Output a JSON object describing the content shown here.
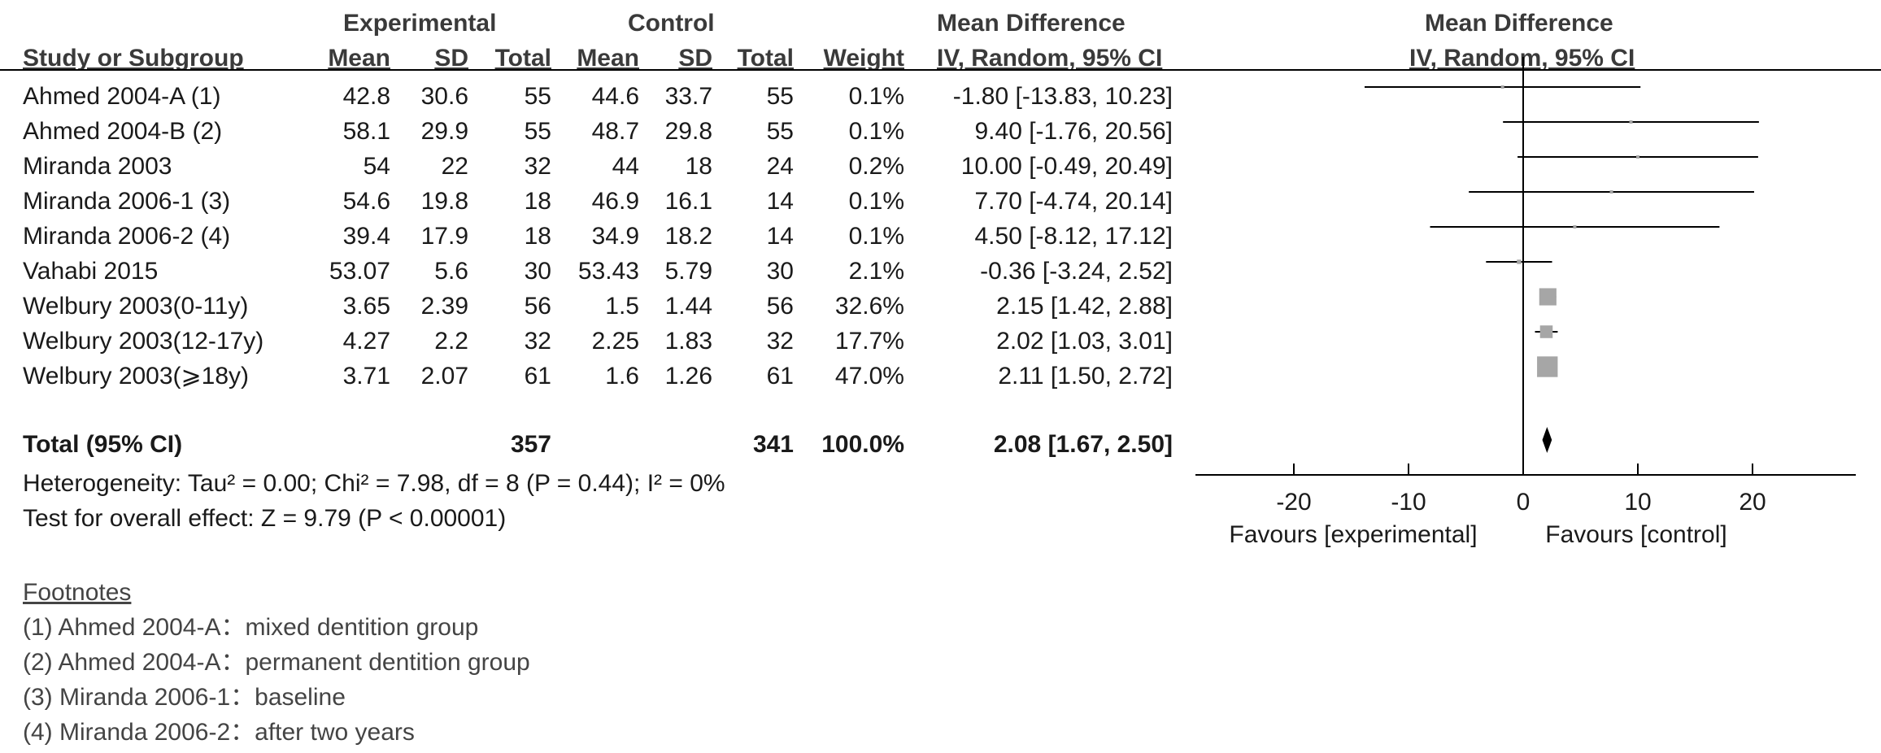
{
  "header": {
    "group_experimental": "Experimental",
    "group_control": "Control",
    "mean_difference": "Mean Difference",
    "study_or_subgroup": "Study or Subgroup",
    "mean": "Mean",
    "sd": "SD",
    "total": "Total",
    "weight": "Weight",
    "method": "IV, Random, 95% CI",
    "plot_title": "Mean Difference",
    "plot_method": "IV, Random, 95% CI"
  },
  "studies": [
    {
      "name": "Ahmed 2004-A (1)",
      "e_mean": "42.8",
      "e_sd": "30.6",
      "e_total": "55",
      "c_mean": "44.6",
      "c_sd": "33.7",
      "c_total": "55",
      "weight": "0.1%",
      "ci": "-1.80 [-13.83, 10.23]"
    },
    {
      "name": "Ahmed 2004-B (2)",
      "e_mean": "58.1",
      "e_sd": "29.9",
      "e_total": "55",
      "c_mean": "48.7",
      "c_sd": "29.8",
      "c_total": "55",
      "weight": "0.1%",
      "ci": "9.40 [-1.76, 20.56]"
    },
    {
      "name": "Miranda 2003",
      "e_mean": "54",
      "e_sd": "22",
      "e_total": "32",
      "c_mean": "44",
      "c_sd": "18",
      "c_total": "24",
      "weight": "0.2%",
      "ci": "10.00 [-0.49, 20.49]"
    },
    {
      "name": "Miranda 2006-1 (3)",
      "e_mean": "54.6",
      "e_sd": "19.8",
      "e_total": "18",
      "c_mean": "46.9",
      "c_sd": "16.1",
      "c_total": "14",
      "weight": "0.1%",
      "ci": "7.70 [-4.74, 20.14]"
    },
    {
      "name": "Miranda 2006-2 (4)",
      "e_mean": "39.4",
      "e_sd": "17.9",
      "e_total": "18",
      "c_mean": "34.9",
      "c_sd": "18.2",
      "c_total": "14",
      "weight": "0.1%",
      "ci": "4.50 [-8.12, 17.12]"
    },
    {
      "name": "Vahabi 2015",
      "e_mean": "53.07",
      "e_sd": "5.6",
      "e_total": "30",
      "c_mean": "53.43",
      "c_sd": "5.79",
      "c_total": "30",
      "weight": "2.1%",
      "ci": "-0.36 [-3.24, 2.52]"
    },
    {
      "name": "Welbury 2003(0-11y)",
      "e_mean": "3.65",
      "e_sd": "2.39",
      "e_total": "56",
      "c_mean": "1.5",
      "c_sd": "1.44",
      "c_total": "56",
      "weight": "32.6%",
      "ci": "2.15 [1.42, 2.88]"
    },
    {
      "name": "Welbury 2003(12-17y)",
      "e_mean": "4.27",
      "e_sd": "2.2",
      "e_total": "32",
      "c_mean": "2.25",
      "c_sd": "1.83",
      "c_total": "32",
      "weight": "17.7%",
      "ci": "2.02 [1.03, 3.01]"
    },
    {
      "name": "Welbury 2003(⩾18y)",
      "e_mean": "3.71",
      "e_sd": "2.07",
      "e_total": "61",
      "c_mean": "1.6",
      "c_sd": "1.26",
      "c_total": "61",
      "weight": "47.0%",
      "ci": "2.11 [1.50, 2.72]"
    }
  ],
  "total": {
    "label": "Total (95% CI)",
    "e_total": "357",
    "c_total": "341",
    "weight": "100.0%",
    "ci": "2.08 [1.67, 2.50]"
  },
  "heterogeneity": "Heterogeneity: Tau² = 0.00; Chi² = 7.98, df = 8 (P = 0.44); I² = 0%",
  "overall_effect": "Test for overall effect: Z = 9.79 (P < 0.00001)",
  "footnotes": {
    "title": "Footnotes",
    "items": [
      "(1) Ahmed 2004-A：mixed dentition group",
      "(2) Ahmed 2004-A：permanent dentition group",
      "(3) Miranda 2006-1：baseline",
      "(4) Miranda 2006-2：after two years"
    ]
  },
  "chart_data": {
    "type": "forest",
    "xlim": [
      -28,
      29
    ],
    "xticks": [
      -20,
      -10,
      0,
      10,
      20
    ],
    "tick_labels": [
      "-20",
      "-10",
      "0",
      "10",
      "20"
    ],
    "xlabel_left": "Favours [experimental]",
    "xlabel_right": "Favours [control]",
    "point_color": "#a6a6a6",
    "studies": [
      {
        "name": "Ahmed 2004-A (1)",
        "estimate": -1.8,
        "lower": -13.83,
        "upper": 10.23,
        "weight": 0.1
      },
      {
        "name": "Ahmed 2004-B (2)",
        "estimate": 9.4,
        "lower": -1.76,
        "upper": 20.56,
        "weight": 0.1
      },
      {
        "name": "Miranda 2003",
        "estimate": 10.0,
        "lower": -0.49,
        "upper": 20.49,
        "weight": 0.2
      },
      {
        "name": "Miranda 2006-1 (3)",
        "estimate": 7.7,
        "lower": -4.74,
        "upper": 20.14,
        "weight": 0.1
      },
      {
        "name": "Miranda 2006-2 (4)",
        "estimate": 4.5,
        "lower": -8.12,
        "upper": 17.12,
        "weight": 0.1
      },
      {
        "name": "Vahabi 2015",
        "estimate": -0.36,
        "lower": -3.24,
        "upper": 2.52,
        "weight": 2.1
      },
      {
        "name": "Welbury 2003(0-11y)",
        "estimate": 2.15,
        "lower": 1.42,
        "upper": 2.88,
        "weight": 32.6
      },
      {
        "name": "Welbury 2003(12-17y)",
        "estimate": 2.02,
        "lower": 1.03,
        "upper": 3.01,
        "weight": 17.7
      },
      {
        "name": "Welbury 2003(⩾18y)",
        "estimate": 2.11,
        "lower": 1.5,
        "upper": 2.72,
        "weight": 47.0
      }
    ],
    "pooled": {
      "estimate": 2.08,
      "lower": 1.67,
      "upper": 2.5
    }
  }
}
